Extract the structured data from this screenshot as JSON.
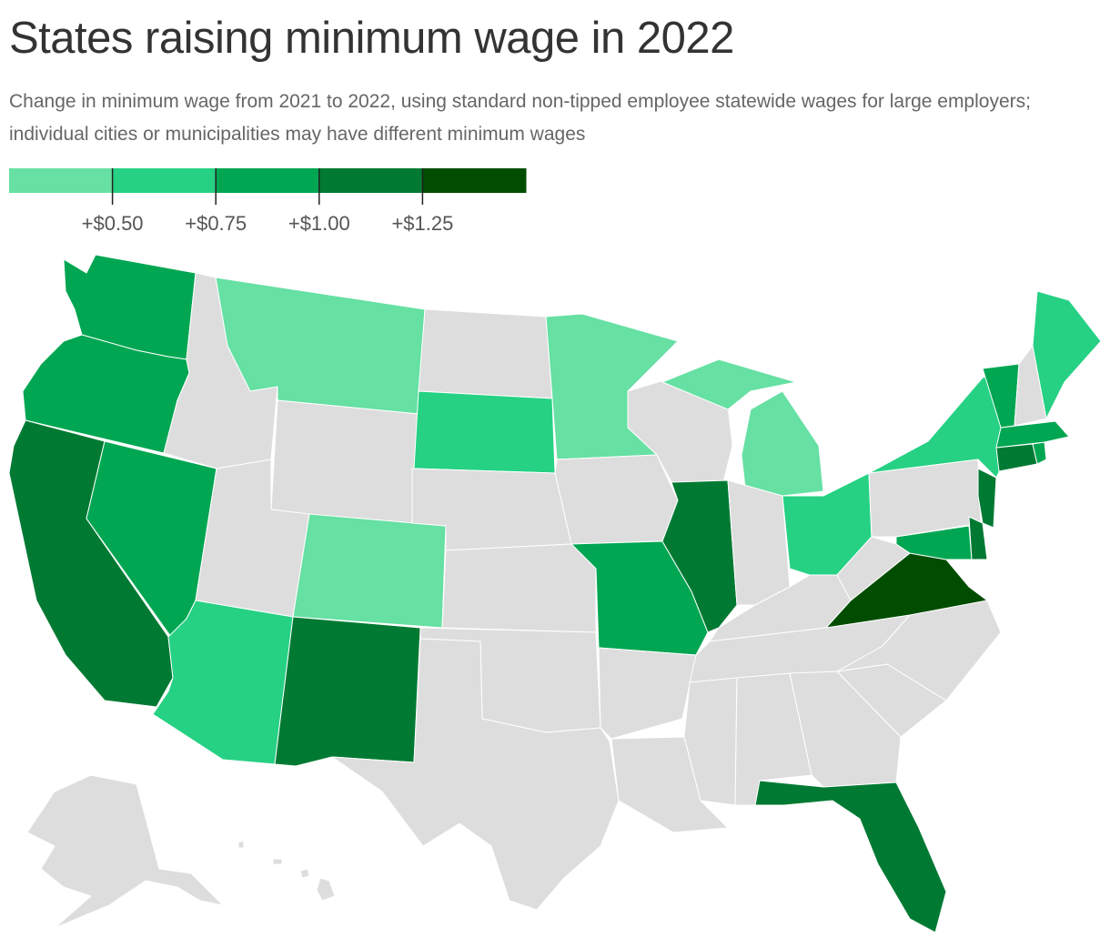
{
  "title": "States raising minimum wage in 2022",
  "subtitle": "Change in minimum wage from 2021 to 2022, using standard non-tipped employee statewide wages for large employers; individual cities or municipalities may have different minimum wages",
  "legend": {
    "colors": [
      "#66e0a3",
      "#26d184",
      "#00a651",
      "#007a33",
      "#004d00"
    ],
    "ticks": [
      "+$0.50",
      "+$0.75",
      "+$1.00",
      "+$1.25"
    ]
  },
  "colors": {
    "none": "#dddddd",
    "border": "#ffffff"
  },
  "map_data": {
    "type": "choropleth",
    "bins": [
      "under +$0.50",
      "+$0.50 to +$0.75",
      "+$0.75 to +$1.00",
      "+$1.00 to +$1.25",
      "+$1.25 and over"
    ],
    "states": {
      "WA": 2,
      "OR": 2,
      "CA": 3,
      "NV": 2,
      "AZ": 1,
      "NM": 3,
      "CO": 0,
      "MT": 0,
      "SD": 1,
      "MN": 0,
      "MO": 2,
      "IL": 3,
      "MI": 0,
      "OH": 1,
      "NY": 1,
      "VT": 2,
      "ME": 1,
      "MA": 2,
      "RI": 2,
      "CT": 3,
      "NJ": 3,
      "DE": 3,
      "MD": 2,
      "VA": 4,
      "FL": 3,
      "ID": -1,
      "WY": -1,
      "UT": -1,
      "ND": -1,
      "NE": -1,
      "KS": -1,
      "OK": -1,
      "TX": -1,
      "IA": -1,
      "AR": -1,
      "LA": -1,
      "WI": -1,
      "IN": -1,
      "KY": -1,
      "TN": -1,
      "MS": -1,
      "AL": -1,
      "GA": -1,
      "SC": -1,
      "NC": -1,
      "WV": -1,
      "PA": -1,
      "NH": -1,
      "AK": -1,
      "HI": -1
    }
  }
}
